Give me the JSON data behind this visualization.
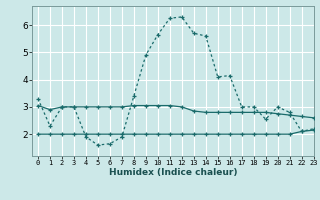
{
  "xlabel": "Humidex (Indice chaleur)",
  "bg_color": "#cce8e8",
  "grid_color": "#ffffff",
  "line_color": "#1a6b6b",
  "xlim": [
    -0.5,
    23
  ],
  "ylim": [
    1.2,
    6.7
  ],
  "yticks": [
    2,
    3,
    4,
    5,
    6
  ],
  "xticks": [
    0,
    1,
    2,
    3,
    4,
    5,
    6,
    7,
    8,
    9,
    10,
    11,
    12,
    13,
    14,
    15,
    16,
    17,
    18,
    19,
    20,
    21,
    22,
    23
  ],
  "line1_x": [
    0,
    1,
    2,
    3,
    4,
    5,
    6,
    7,
    8,
    9,
    10,
    11,
    12,
    13,
    14,
    15,
    16,
    17,
    18,
    19,
    20,
    21,
    22,
    23
  ],
  "line1_y": [
    3.3,
    2.3,
    3.0,
    3.0,
    1.9,
    1.6,
    1.65,
    1.9,
    3.4,
    4.9,
    5.65,
    6.25,
    6.3,
    5.7,
    5.6,
    4.1,
    4.15,
    3.0,
    3.0,
    2.55,
    3.0,
    2.8,
    2.1,
    2.2
  ],
  "line2_x": [
    0,
    1,
    2,
    3,
    4,
    5,
    6,
    7,
    8,
    9,
    10,
    11,
    12,
    13,
    14,
    15,
    16,
    17,
    18,
    19,
    20,
    21,
    22,
    23
  ],
  "line2_y": [
    3.05,
    2.9,
    3.0,
    3.0,
    3.0,
    3.0,
    3.0,
    3.0,
    3.05,
    3.05,
    3.05,
    3.05,
    3.0,
    2.85,
    2.8,
    2.8,
    2.8,
    2.8,
    2.8,
    2.8,
    2.75,
    2.7,
    2.65,
    2.6
  ],
  "line3_x": [
    0,
    1,
    2,
    3,
    4,
    5,
    6,
    7,
    8,
    9,
    10,
    11,
    12,
    13,
    14,
    15,
    16,
    17,
    18,
    19,
    20,
    21,
    22,
    23
  ],
  "line3_y": [
    2.0,
    2.0,
    2.0,
    2.0,
    2.0,
    2.0,
    2.0,
    2.0,
    2.0,
    2.0,
    2.0,
    2.0,
    2.0,
    2.0,
    2.0,
    2.0,
    2.0,
    2.0,
    2.0,
    2.0,
    2.0,
    2.0,
    2.1,
    2.15
  ],
  "line1_style": "-",
  "line2_style": "-",
  "line3_style": "-"
}
